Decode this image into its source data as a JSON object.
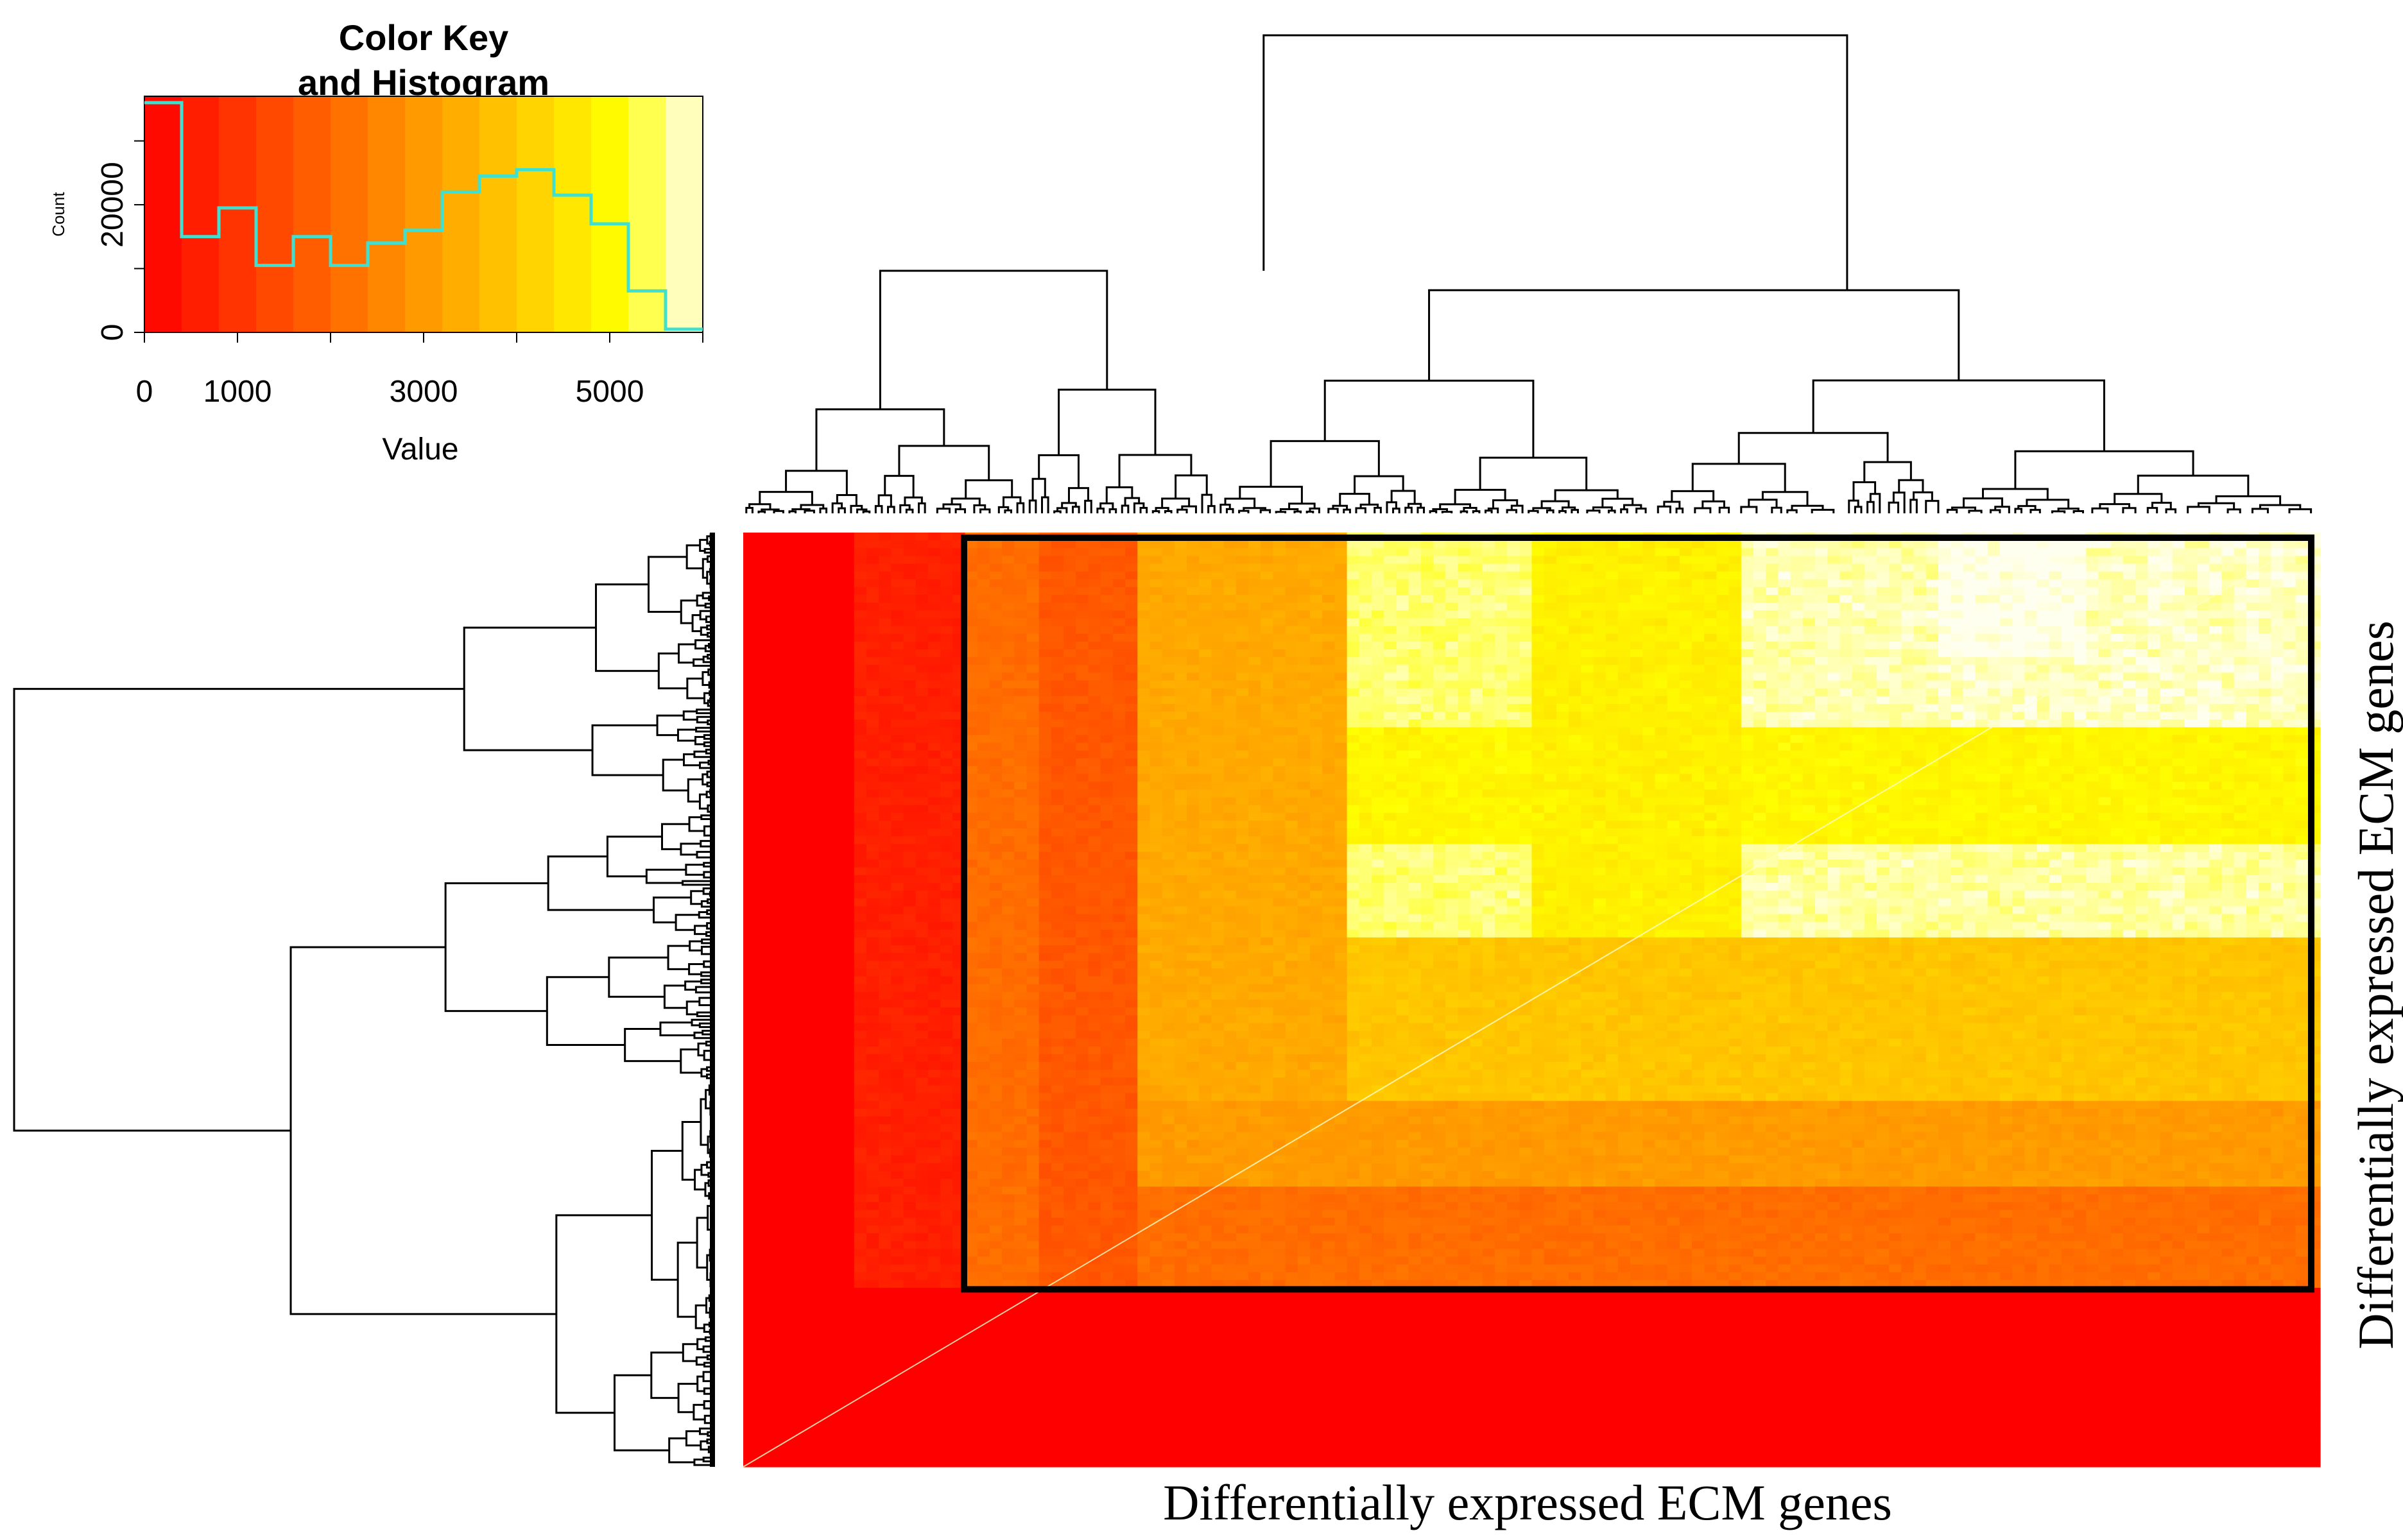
{
  "chart_data": {
    "type": "heatmap",
    "xlabel": "Differentially expressed ECM genes",
    "ylabel": "Differentially expressed ECM genes",
    "color_scale": {
      "low": "#ff0000",
      "mid": "#ff8c00",
      "high": "#ffff00",
      "max": "#fffff0",
      "value_range": [
        0,
        6000
      ]
    },
    "col_blocks": [
      {
        "start": 0.0,
        "end": 0.07,
        "level": 0.0
      },
      {
        "start": 0.07,
        "end": 0.14,
        "level": 0.1
      },
      {
        "start": 0.14,
        "end": 0.19,
        "level": 0.35
      },
      {
        "start": 0.19,
        "end": 0.25,
        "level": 0.28
      },
      {
        "start": 0.25,
        "end": 0.38,
        "level": 0.55
      },
      {
        "start": 0.38,
        "end": 0.5,
        "level": 0.92
      },
      {
        "start": 0.5,
        "end": 0.63,
        "level": 0.8
      },
      {
        "start": 0.63,
        "end": 0.76,
        "level": 0.96
      },
      {
        "start": 0.76,
        "end": 0.85,
        "level": 1.0
      },
      {
        "start": 0.85,
        "end": 1.0,
        "level": 0.97
      }
    ],
    "row_blocks": [
      {
        "start": 0.0,
        "end": 0.13,
        "level": 1.0
      },
      {
        "start": 0.13,
        "end": 0.21,
        "level": 0.97
      },
      {
        "start": 0.21,
        "end": 0.33,
        "level": 0.82
      },
      {
        "start": 0.33,
        "end": 0.43,
        "level": 0.95
      },
      {
        "start": 0.43,
        "end": 0.61,
        "level": 0.65
      },
      {
        "start": 0.61,
        "end": 0.7,
        "level": 0.5
      },
      {
        "start": 0.7,
        "end": 0.81,
        "level": 0.35
      },
      {
        "start": 0.81,
        "end": 1.0,
        "level": 0.0
      }
    ],
    "highlight_box": {
      "col_start": 0.14,
      "col_end": 1.0,
      "row_start": 0.0,
      "row_end": 0.81
    },
    "color_key": {
      "title_line1": "Color Key",
      "title_line2": "and Histogram",
      "xlabel": "Value",
      "ylabel": "Count",
      "x_ticks": [
        {
          "value": 0,
          "label": "0"
        },
        {
          "value": 1000,
          "label": "1000"
        },
        {
          "value": 3000,
          "label": "3000"
        },
        {
          "value": 5000,
          "label": "5000"
        }
      ],
      "y_ticks": [
        {
          "value": 0,
          "label": "0"
        },
        {
          "value": 20000,
          "label": "20000"
        }
      ],
      "xlim": [
        0,
        6000
      ],
      "ylim": [
        0,
        37000
      ],
      "histogram_color": "#40e0d0",
      "bin_edges": [
        0,
        400,
        800,
        1200,
        1600,
        2000,
        2400,
        2800,
        3200,
        3600,
        4000,
        4400,
        4800,
        5200,
        5600,
        6000
      ],
      "counts": [
        36000,
        15000,
        19500,
        10500,
        15000,
        10500,
        14000,
        16000,
        22000,
        24500,
        25500,
        21500,
        17000,
        6500,
        500
      ]
    }
  }
}
